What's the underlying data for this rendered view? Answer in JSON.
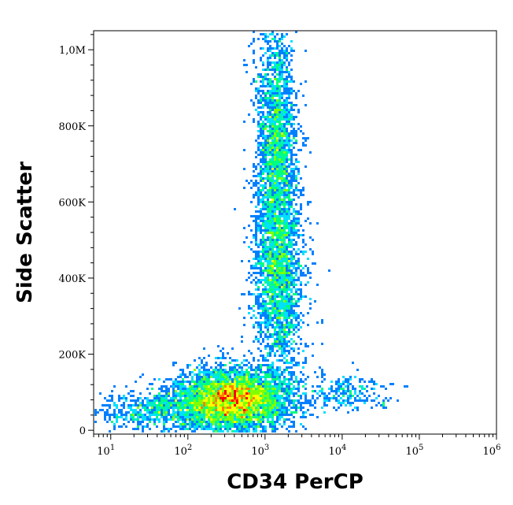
{
  "chart_data": {
    "type": "scatter",
    "subtype": "flow-cytometry-density-dot-plot",
    "title": "",
    "xlabel": "CD34 PerCP",
    "ylabel": "Side Scatter",
    "x_scale": "log",
    "xlim": [
      6,
      1000000
    ],
    "ylim": [
      -10000,
      1050000
    ],
    "x_ticks": [
      {
        "value": 10,
        "base": "10",
        "exp": "1"
      },
      {
        "value": 100,
        "base": "10",
        "exp": "2"
      },
      {
        "value": 1000,
        "base": "10",
        "exp": "3"
      },
      {
        "value": 10000,
        "base": "10",
        "exp": "4"
      },
      {
        "value": 100000,
        "base": "10",
        "exp": "5"
      },
      {
        "value": 1000000,
        "base": "10",
        "exp": "6"
      }
    ],
    "y_ticks": [
      {
        "value": 0,
        "label": "0"
      },
      {
        "value": 200000,
        "label": "200K"
      },
      {
        "value": 400000,
        "label": "400K"
      },
      {
        "value": 600000,
        "label": "600K"
      },
      {
        "value": 800000,
        "label": "800K"
      },
      {
        "value": 1000000,
        "label": "1,0M"
      }
    ],
    "grid": false,
    "legend": "none",
    "color_scale": [
      "#0000ff",
      "#0080ff",
      "#00e0ff",
      "#00ff80",
      "#80ff00",
      "#ffff00",
      "#ff8000",
      "#ff0000"
    ],
    "populations": [
      {
        "x_center": 380,
        "y_center": 80000,
        "x_spread_decades": 0.28,
        "y_spread": 40000,
        "peak_density": 1.0
      },
      {
        "x_center": 1400,
        "y_center": 720000,
        "x_spread_decades": 0.1,
        "y_spread": 180000,
        "peak_density": 0.55
      },
      {
        "x_center": 1500,
        "y_center": 380000,
        "x_spread_decades": 0.13,
        "y_spread": 120000,
        "peak_density": 0.3
      },
      {
        "x_center": 40,
        "y_center": 50000,
        "x_spread_decades": 0.3,
        "y_spread": 25000,
        "peak_density": 0.15
      },
      {
        "x_center": 12000,
        "y_center": 100000,
        "x_spread_decades": 0.2,
        "y_spread": 25000,
        "peak_density": 0.05
      }
    ]
  }
}
